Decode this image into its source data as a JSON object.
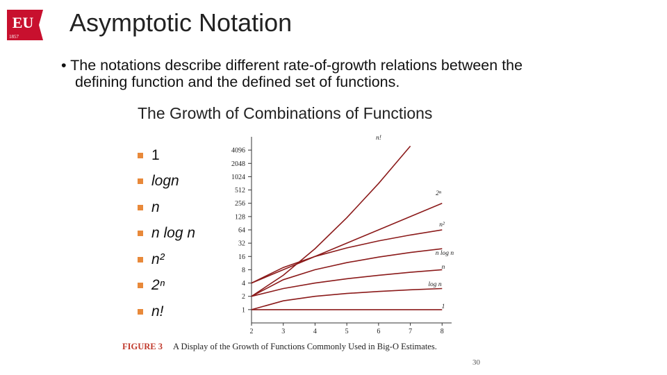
{
  "header": {
    "logo": "EU",
    "logo_year": "1857",
    "title": "Asymptotic Notation"
  },
  "bullet": "The notations describe different rate-of-growth relations between the defining function and the defined set of functions.",
  "subtitle": "The Growth of Combinations of  Functions",
  "list": [
    "1",
    "logn",
    "n",
    "n log n",
    "n²",
    "2ⁿ",
    "n!"
  ],
  "chart_data": {
    "type": "line",
    "x": [
      2,
      3,
      4,
      5,
      6,
      7,
      8
    ],
    "xlim": [
      2,
      8.3
    ],
    "xticks": [
      2,
      3,
      4,
      5,
      6,
      7,
      8
    ],
    "ylim": [
      0.5,
      8192
    ],
    "yticks": [
      1,
      2,
      4,
      8,
      16,
      32,
      64,
      128,
      256,
      512,
      1024,
      2048,
      4096
    ],
    "log_scale_y": true,
    "grid": false,
    "series": [
      {
        "name": "n!",
        "color": "#8b1a1a",
        "values": [
          2,
          6,
          24,
          120,
          720,
          5040,
          null
        ]
      },
      {
        "name": "2ⁿ",
        "color": "#8b1a1a",
        "values": [
          4,
          8,
          16,
          32,
          64,
          128,
          256
        ]
      },
      {
        "name": "n²",
        "color": "#8b1a1a",
        "values": [
          4,
          9,
          16,
          25,
          36,
          49,
          64
        ]
      },
      {
        "name": "n log n",
        "color": "#8b1a1a",
        "values": [
          2,
          4.75,
          8,
          11.6,
          15.5,
          19.65,
          24
        ]
      },
      {
        "name": "n",
        "color": "#8b1a1a",
        "values": [
          2,
          3,
          4,
          5,
          6,
          7,
          8
        ]
      },
      {
        "name": "log n",
        "color": "#8b1a1a",
        "values": [
          1,
          1.58,
          2,
          2.32,
          2.58,
          2.81,
          3
        ]
      },
      {
        "name": "1",
        "color": "#8b1a1a",
        "values": [
          1,
          1,
          1,
          1,
          1,
          1,
          1
        ]
      }
    ]
  },
  "figure_label": "FIGURE 3",
  "caption": "A Display of the Growth of Functions Commonly Used in Big-O Estimates.",
  "page_number": "30"
}
